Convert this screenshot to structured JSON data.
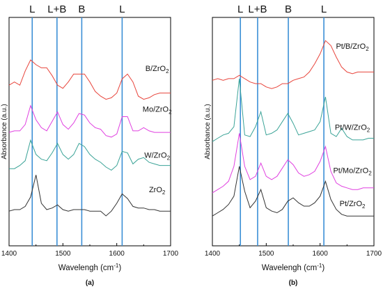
{
  "chart_data": [
    {
      "type": "line",
      "panel_label": "(a)",
      "xlabel": "Wavelengh (cm",
      "xlabel_sup": "-1",
      "xlabel_close": ")",
      "ylabel": "Absorbance (a.u.)",
      "xlim": [
        1400,
        1700
      ],
      "xticks": [
        "1400",
        "1500",
        "1600",
        "1700"
      ],
      "markers": [
        {
          "label": "L",
          "x": 1443
        },
        {
          "label": "L+B",
          "x": 1489
        },
        {
          "label": "B",
          "x": 1535
        },
        {
          "label": "L",
          "x": 1610
        }
      ],
      "series": [
        {
          "name": "B/ZrO",
          "sub": "2",
          "color": "#e8453c",
          "label_x": 1675,
          "label_y": 86,
          "x": [
            1400,
            1410,
            1420,
            1430,
            1440,
            1450,
            1460,
            1470,
            1480,
            1490,
            1500,
            1510,
            1520,
            1530,
            1540,
            1550,
            1560,
            1570,
            1580,
            1590,
            1600,
            1610,
            1620,
            1630,
            1640,
            1650,
            1660,
            1670,
            1680,
            1690,
            1700
          ],
          "y": [
            77,
            79,
            77,
            86,
            93,
            90,
            88,
            88,
            83,
            77,
            75,
            79,
            84,
            84,
            84,
            79,
            73,
            70,
            68,
            69,
            72,
            81,
            84,
            79,
            70,
            68,
            69,
            71,
            72,
            72,
            72
          ]
        },
        {
          "name": "Mo/ZrO",
          "sub": "2",
          "color": "#e040e0",
          "label_x": 1675,
          "label_y": 60,
          "x": [
            1400,
            1410,
            1420,
            1430,
            1440,
            1450,
            1460,
            1470,
            1480,
            1490,
            1500,
            1510,
            1520,
            1530,
            1540,
            1550,
            1560,
            1570,
            1580,
            1590,
            1600,
            1610,
            1620,
            1630,
            1640,
            1650,
            1660,
            1670,
            1680,
            1690,
            1700
          ],
          "y": [
            47,
            48,
            48,
            52,
            64,
            55,
            50,
            48,
            54,
            60,
            52,
            49,
            53,
            59,
            58,
            53,
            50,
            49,
            45,
            44,
            46,
            57,
            57,
            48,
            48,
            50,
            48,
            47,
            47,
            47,
            47
          ]
        },
        {
          "name": "W/ZrO",
          "sub": "2",
          "color": "#3aa397",
          "label_x": 1675,
          "label_y": 31,
          "x": [
            1400,
            1410,
            1420,
            1430,
            1440,
            1450,
            1460,
            1470,
            1480,
            1490,
            1500,
            1510,
            1520,
            1530,
            1540,
            1550,
            1560,
            1570,
            1580,
            1590,
            1600,
            1610,
            1620,
            1630,
            1640,
            1650,
            1660,
            1670,
            1680,
            1690,
            1700
          ],
          "y": [
            24,
            24,
            26,
            29,
            42,
            33,
            30,
            29,
            34,
            40,
            33,
            30,
            33,
            40,
            38,
            33,
            30,
            28,
            25,
            23,
            26,
            35,
            34,
            27,
            30,
            31,
            28,
            27,
            26,
            26,
            26
          ]
        },
        {
          "name": "ZrO",
          "sub": "2",
          "color": "#333333",
          "label_x": 1675,
          "label_y": 9,
          "x": [
            1400,
            1410,
            1420,
            1430,
            1440,
            1450,
            1460,
            1470,
            1480,
            1490,
            1500,
            1510,
            1520,
            1530,
            1540,
            1550,
            1560,
            1570,
            1580,
            1590,
            1600,
            1610,
            1620,
            1630,
            1640,
            1650,
            1660,
            1670,
            1680,
            1690,
            1700
          ],
          "y": [
            -3,
            -2,
            -2,
            0,
            6,
            20,
            2,
            -2,
            -1,
            1,
            -2,
            -3,
            -2,
            -2,
            -2,
            -3,
            -3,
            -3,
            -6,
            -3,
            2,
            8,
            5,
            0,
            -1,
            -1,
            -2,
            -2,
            -3,
            -3,
            -3
          ]
        }
      ]
    },
    {
      "type": "line",
      "panel_label": "(b)",
      "xlabel": "Wavelengh (cm",
      "xlabel_sup": "-1",
      "xlabel_close": ")",
      "ylabel": "Absorbance (a.u.)",
      "xlim": [
        1400,
        1700
      ],
      "xticks": [
        "1400",
        "1500",
        "1600",
        "1700"
      ],
      "markers": [
        {
          "label": "L",
          "x": 1452
        },
        {
          "label": "L+B",
          "x": 1484
        },
        {
          "label": "B",
          "x": 1541
        },
        {
          "label": "L",
          "x": 1607
        }
      ],
      "series": [
        {
          "name": "Pt/B/ZrO",
          "sub": "2",
          "color": "#e8453c",
          "label_x": 1660,
          "label_y": 101,
          "x": [
            1400,
            1410,
            1420,
            1430,
            1440,
            1450,
            1460,
            1470,
            1480,
            1490,
            1500,
            1510,
            1520,
            1530,
            1540,
            1550,
            1560,
            1570,
            1580,
            1590,
            1600,
            1610,
            1620,
            1630,
            1640,
            1650,
            1660,
            1670,
            1680,
            1690,
            1700
          ],
          "y": [
            82,
            83,
            82,
            83,
            83,
            85,
            83,
            81,
            80,
            80,
            78,
            77,
            78,
            80,
            80,
            82,
            83,
            84,
            87,
            92,
            98,
            106,
            103,
            96,
            90,
            87,
            86,
            87,
            87,
            87,
            87
          ]
        },
        {
          "name": "Pt/W/ZrO",
          "sub": "2",
          "color": "#3aa397",
          "label_x": 1660,
          "label_y": 52,
          "x": [
            1400,
            1410,
            1420,
            1430,
            1440,
            1450,
            1460,
            1470,
            1480,
            1490,
            1500,
            1510,
            1520,
            1530,
            1540,
            1550,
            1560,
            1570,
            1580,
            1590,
            1600,
            1610,
            1620,
            1630,
            1640,
            1650,
            1660,
            1670,
            1680,
            1690,
            1700
          ],
          "y": [
            45,
            47,
            49,
            50,
            54,
            83,
            49,
            48,
            54,
            63,
            49,
            50,
            52,
            57,
            62,
            56,
            49,
            50,
            51,
            52,
            57,
            72,
            50,
            48,
            53,
            48,
            46,
            46,
            46,
            47,
            47
          ]
        },
        {
          "name": "Pt/Mo/ZrO",
          "sub": "2",
          "color": "#e040e0",
          "label_x": 1660,
          "label_y": 26,
          "x": [
            1400,
            1410,
            1420,
            1430,
            1440,
            1450,
            1460,
            1470,
            1480,
            1490,
            1500,
            1510,
            1520,
            1530,
            1540,
            1550,
            1560,
            1570,
            1580,
            1590,
            1600,
            1610,
            1620,
            1630,
            1640,
            1650,
            1660,
            1670,
            1680,
            1690,
            1700
          ],
          "y": [
            14,
            16,
            18,
            21,
            30,
            50,
            30,
            22,
            24,
            32,
            24,
            22,
            24,
            29,
            34,
            31,
            26,
            24,
            25,
            27,
            33,
            42,
            27,
            20,
            18,
            17,
            16,
            16,
            17,
            17,
            17
          ]
        },
        {
          "name": "Pt/ZrO",
          "sub": "2",
          "color": "#333333",
          "label_x": 1660,
          "label_y": 6,
          "x": [
            1400,
            1410,
            1420,
            1430,
            1440,
            1450,
            1460,
            1470,
            1480,
            1490,
            1500,
            1510,
            1520,
            1530,
            1540,
            1550,
            1560,
            1570,
            1580,
            1590,
            1600,
            1610,
            1620,
            1630,
            1640,
            1650,
            1660,
            1670,
            1680,
            1690,
            1700
          ],
          "y": [
            0,
            2,
            4,
            7,
            12,
            30,
            15,
            5,
            9,
            16,
            5,
            3,
            2,
            4,
            9,
            11,
            8,
            6,
            6,
            8,
            12,
            21,
            10,
            4,
            1,
            0,
            0,
            0,
            0,
            0,
            0
          ]
        }
      ]
    }
  ]
}
